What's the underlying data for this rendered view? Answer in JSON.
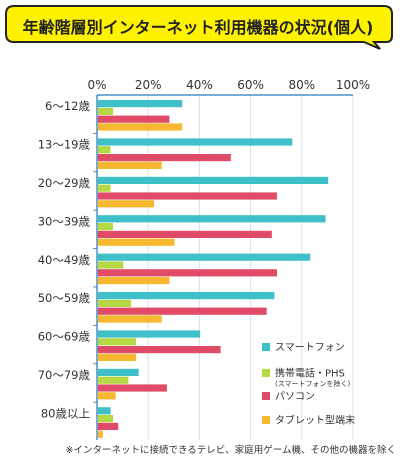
{
  "title": "年齢階層別インターネット利用機器の状況(個人)",
  "footnote": "※インターネットに接続できるテレビ、家庭用ゲーム機、その他の機器を除く",
  "colors": {
    "title_bg": "#fff200",
    "title_border": "#222222",
    "axis": "#4a90c8",
    "grid": "#cfe3f3"
  },
  "chart_data": {
    "type": "bar",
    "orientation": "horizontal",
    "title": "年齢階層別インターネット利用機器の状況(個人)",
    "x_ticks": [
      "0%",
      "20%",
      "40%",
      "60%",
      "80%",
      "100%"
    ],
    "xlim": [
      0,
      100
    ],
    "unit": "%",
    "grid": true,
    "legend_position": "bottom-right",
    "categories": [
      "6～12歳",
      "13～19歳",
      "20～29歳",
      "30～39歳",
      "40～49歳",
      "50～59歳",
      "60～69歳",
      "70～79歳",
      "80歳以上"
    ],
    "series": [
      {
        "name": "スマートフォン",
        "color": "#3fbfc8",
        "values": [
          33,
          76,
          90,
          89,
          83,
          69,
          40,
          16,
          5
        ]
      },
      {
        "name": "携帯電話・PHS",
        "note": "(スマートフォンを除く)",
        "color": "#b5d945",
        "values": [
          6,
          5,
          5,
          6,
          10,
          13,
          15,
          12,
          6
        ]
      },
      {
        "name": "パソコン",
        "color": "#e04b67",
        "values": [
          28,
          52,
          70,
          68,
          70,
          66,
          48,
          27,
          8
        ]
      },
      {
        "name": "タブレット型端末",
        "color": "#f7b731",
        "values": [
          33,
          25,
          22,
          30,
          28,
          25,
          15,
          7,
          2
        ]
      }
    ]
  }
}
